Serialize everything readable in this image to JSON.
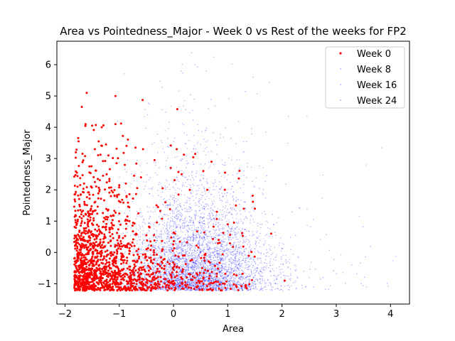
{
  "chart_data": {
    "type": "scatter",
    "title": "Area vs Pointedness_Major - Week 0 vs Rest of the weeks for FP2",
    "xlabel": "Area",
    "ylabel": "Pointedness_Major",
    "xlim": [
      -2.15,
      4.35
    ],
    "ylim": [
      -1.65,
      6.75
    ],
    "xticks": [
      -2,
      -1,
      0,
      1,
      2,
      3,
      4
    ],
    "yticks": [
      -1,
      0,
      1,
      2,
      3,
      4,
      5,
      6
    ],
    "legend_position": "upper-right",
    "series": [
      {
        "name": "Week 0",
        "color": "#ff0000",
        "points": [
          [
            -1.6,
            5.1
          ],
          [
            -1.07,
            5.0
          ],
          [
            -0.57,
            4.87
          ],
          [
            0.07,
            4.58
          ],
          [
            -1.69,
            4.65
          ],
          [
            -1.62,
            4.1
          ],
          [
            -1.5,
            4.05
          ],
          [
            -1.75,
            3.55
          ],
          [
            -1.38,
            3.55
          ],
          [
            -1.8,
            3.2
          ],
          [
            -1.45,
            3.3
          ],
          [
            -0.7,
            3.35
          ],
          [
            -1.2,
            3.1
          ],
          [
            -0.05,
            3.42
          ],
          [
            0.06,
            3.3
          ],
          [
            0.4,
            3.15
          ],
          [
            -0.92,
            3.18
          ],
          [
            -0.35,
            2.95
          ],
          [
            0.7,
            2.9
          ],
          [
            -1.55,
            2.75
          ],
          [
            -1.05,
            2.85
          ],
          [
            -0.05,
            2.7
          ],
          [
            0.15,
            2.5
          ],
          [
            0.55,
            2.6
          ],
          [
            0.95,
            2.55
          ],
          [
            -1.78,
            2.55
          ],
          [
            -1.3,
            2.45
          ],
          [
            -0.6,
            2.4
          ],
          [
            -1.65,
            2.2
          ],
          [
            -1.0,
            2.15
          ],
          [
            0.3,
            2.0
          ],
          [
            -0.2,
            2.05
          ],
          [
            1.15,
            1.5
          ],
          [
            1.5,
            1.4
          ],
          [
            1.8,
            0.6
          ],
          [
            2.05,
            -0.9
          ],
          [
            1.35,
            -1.15
          ],
          [
            1.0,
            0.9
          ],
          [
            0.8,
            1.3
          ],
          [
            -0.15,
            1.6
          ]
        ]
      },
      {
        "name": "Week 8",
        "color": "#0000ff"
      },
      {
        "name": "Week 16",
        "color": "#0000ff"
      },
      {
        "name": "Week 24",
        "color": "#0000ff"
      }
    ]
  }
}
